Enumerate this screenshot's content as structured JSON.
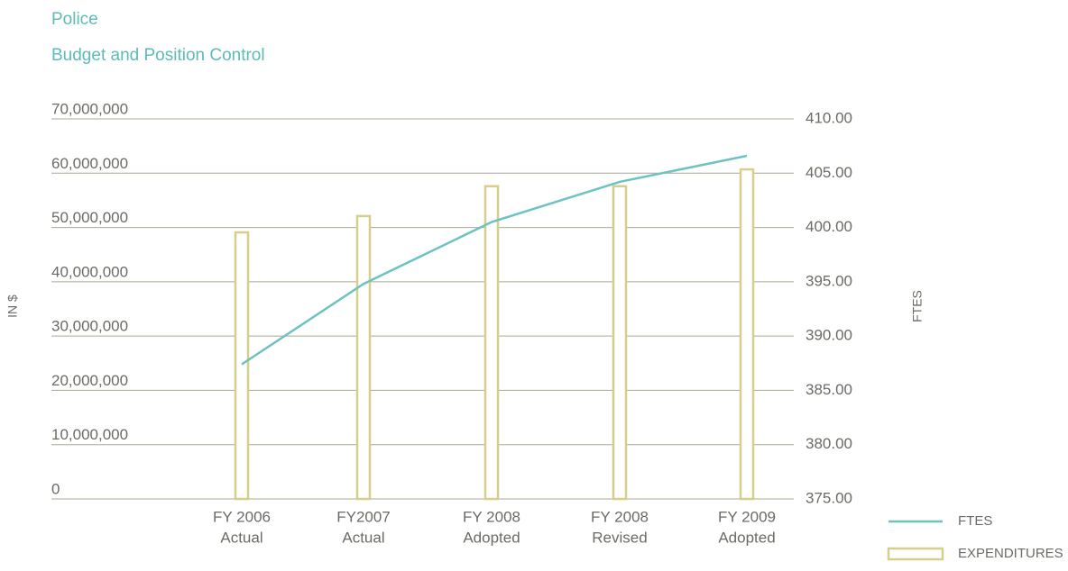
{
  "chart_data": {
    "type": "bar-line",
    "title": "Police",
    "subtitle": "Budget and Position Control",
    "ylabel": "IN $",
    "y2label": "FTES",
    "categories": [
      [
        "FY 2006",
        "Actual"
      ],
      [
        "FY2007",
        "Actual"
      ],
      [
        "FY 2008",
        "Adopted"
      ],
      [
        "FY 2008",
        "Revised"
      ],
      [
        "FY 2009",
        "Adopted"
      ]
    ],
    "series": [
      {
        "name": "FTES",
        "type": "line",
        "axis": "y2",
        "color": "#6cc3c0",
        "values": [
          387.4,
          394.8,
          400.5,
          404.2,
          406.6
        ]
      },
      {
        "name": "EXPENDITURES",
        "type": "bar",
        "color": "#d6cf8c",
        "values": [
          49100000,
          52100000,
          57600000,
          57600000,
          60700000
        ]
      }
    ],
    "ylim": [
      0,
      70000000
    ],
    "yticks": [
      0,
      {
        "value": 10000000,
        "label": "10,000,000"
      },
      {
        "value": 20000000,
        "label": "20,000,000"
      },
      {
        "value": 30000000,
        "label": "30,000,000"
      },
      {
        "value": 40000000,
        "label": "40,000,000"
      },
      {
        "value": 50000000,
        "label": "50,000,000"
      },
      {
        "value": 60000000,
        "label": "60,000,000"
      },
      {
        "value": 70000000,
        "label": "70,000,000"
      }
    ],
    "y2lim": [
      375,
      410
    ],
    "y2ticks": [
      {
        "value": 375,
        "label": "375.00"
      },
      {
        "value": 380,
        "label": "380.00"
      },
      {
        "value": 385,
        "label": "385.00"
      },
      {
        "value": 390,
        "label": "390.00"
      },
      {
        "value": 395,
        "label": "395.00"
      },
      {
        "value": 400,
        "label": "400.00"
      },
      {
        "value": 405,
        "label": "405.00"
      },
      {
        "value": 410,
        "label": "410.00"
      }
    ],
    "grid": true,
    "legend": "lower right"
  }
}
